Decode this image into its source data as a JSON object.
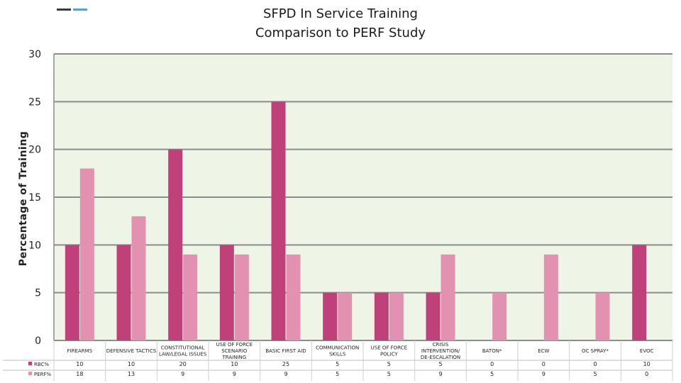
{
  "chart_data": {
    "type": "bar",
    "title": "SFPD In Service Training",
    "subtitle": "Comparison to PERF Study",
    "ylabel": "Percentage of Training",
    "ylim": [
      0,
      30
    ],
    "yticks": [
      0,
      5,
      10,
      15,
      20,
      25,
      30
    ],
    "grid": true,
    "categories": [
      "FIREARMS",
      "DEFENSIVE TACTICS",
      "CONSTITUTIONAL LAW/LEGAL ISSUES",
      "USE OF FORCE SCENARIO TRAINING",
      "BASIC FIRST AID",
      "COMMUNICATION SKILLS",
      "USE OF FORCE POLICY",
      "CRISIS INTERVENTION/DE-ESCALATION",
      "BATON*",
      "ECW",
      "OC SPRAY*",
      "EVOC"
    ],
    "series": [
      {
        "name": "RBC%",
        "color": "#c0407a",
        "values": [
          10,
          10,
          20,
          10,
          25,
          5,
          5,
          5,
          0,
          0,
          0,
          10
        ]
      },
      {
        "name": "PERF%",
        "color": "#e391b1",
        "values": [
          18,
          13,
          9,
          9,
          9,
          5,
          5,
          9,
          5,
          9,
          5,
          0
        ]
      }
    ],
    "legend_position": "bottom-table"
  },
  "colors": {
    "plot_background": "#eef4e6",
    "gridline": "#8c8c8c",
    "axis_text": "#222222"
  }
}
